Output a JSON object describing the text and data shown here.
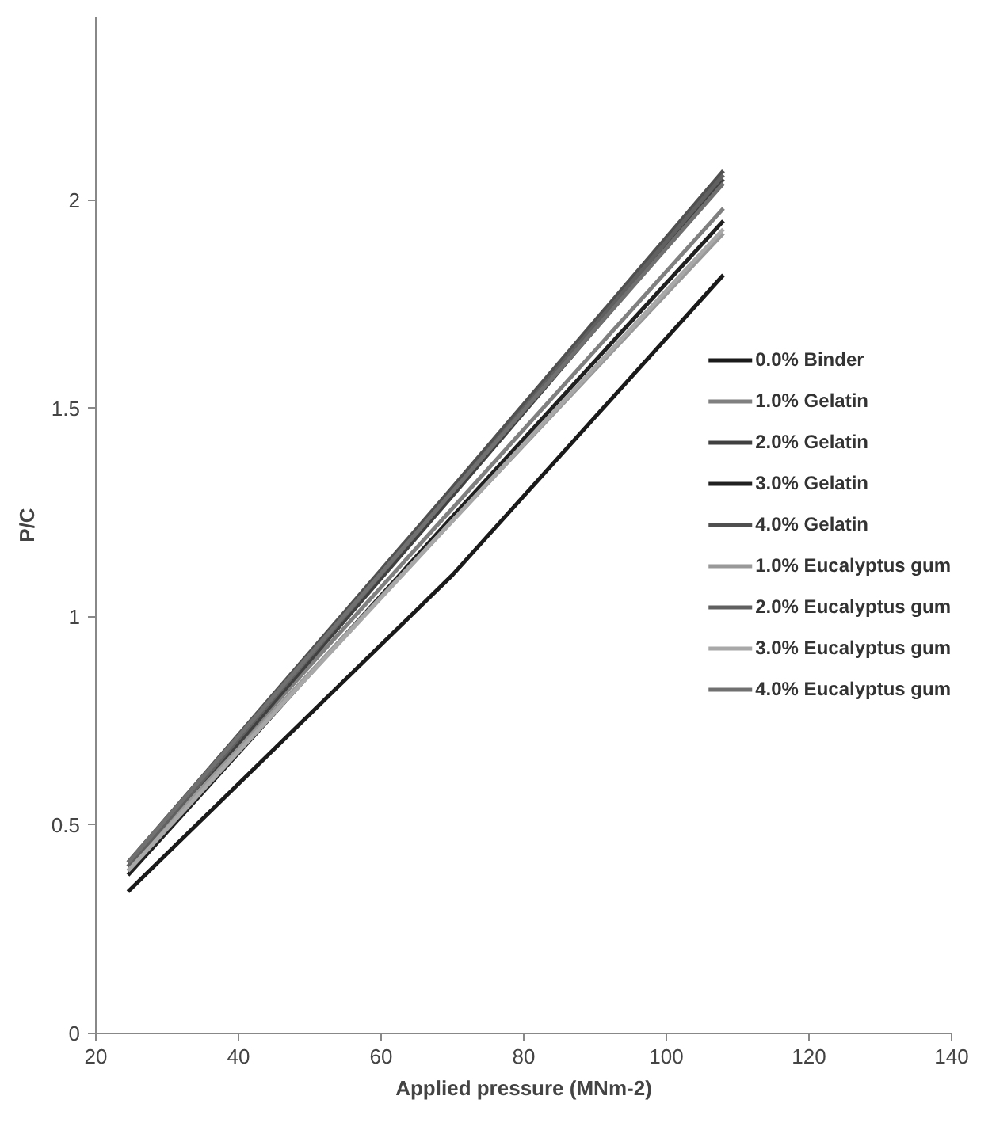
{
  "chart_data": {
    "type": "line",
    "xlabel": "Applied pressure (MNm-2)",
    "ylabel": "P/C",
    "x": [
      24.5,
      70,
      108
    ],
    "series": [
      {
        "name": "0.0% Binder",
        "color": "#1a1a1a",
        "values": [
          0.34,
          1.1,
          1.82
        ]
      },
      {
        "name": "1.0% Gelatin",
        "color": "#808080",
        "values": [
          0.4,
          1.26,
          1.98
        ]
      },
      {
        "name": "2.0% Gelatin",
        "color": "#404040",
        "values": [
          0.39,
          1.29,
          2.05
        ]
      },
      {
        "name": "3.0% Gelatin",
        "color": "#202020",
        "values": [
          0.38,
          1.24,
          1.95
        ]
      },
      {
        "name": "4.0% Gelatin",
        "color": "#505050",
        "values": [
          0.41,
          1.31,
          2.07
        ]
      },
      {
        "name": "1.0% Eucalyptus gum",
        "color": "#999999",
        "values": [
          0.4,
          1.23,
          1.92
        ]
      },
      {
        "name": "2.0% Eucalyptus gum",
        "color": "#606060",
        "values": [
          0.4,
          1.3,
          2.06
        ]
      },
      {
        "name": "3.0% Eucalyptus gum",
        "color": "#a8a8a8",
        "values": [
          0.39,
          1.23,
          1.93
        ]
      },
      {
        "name": "4.0% Eucalyptus gum",
        "color": "#707070",
        "values": [
          0.41,
          1.3,
          2.04
        ]
      }
    ],
    "xlim": [
      20,
      140
    ],
    "ylim": [
      0,
      2.44
    ],
    "xticks": [
      20,
      40,
      60,
      80,
      100,
      120,
      140
    ],
    "yticks": [
      0,
      0.5,
      1,
      1.5,
      2
    ],
    "grid": false,
    "legend": "right",
    "marker": "none",
    "line_style": "solid"
  }
}
